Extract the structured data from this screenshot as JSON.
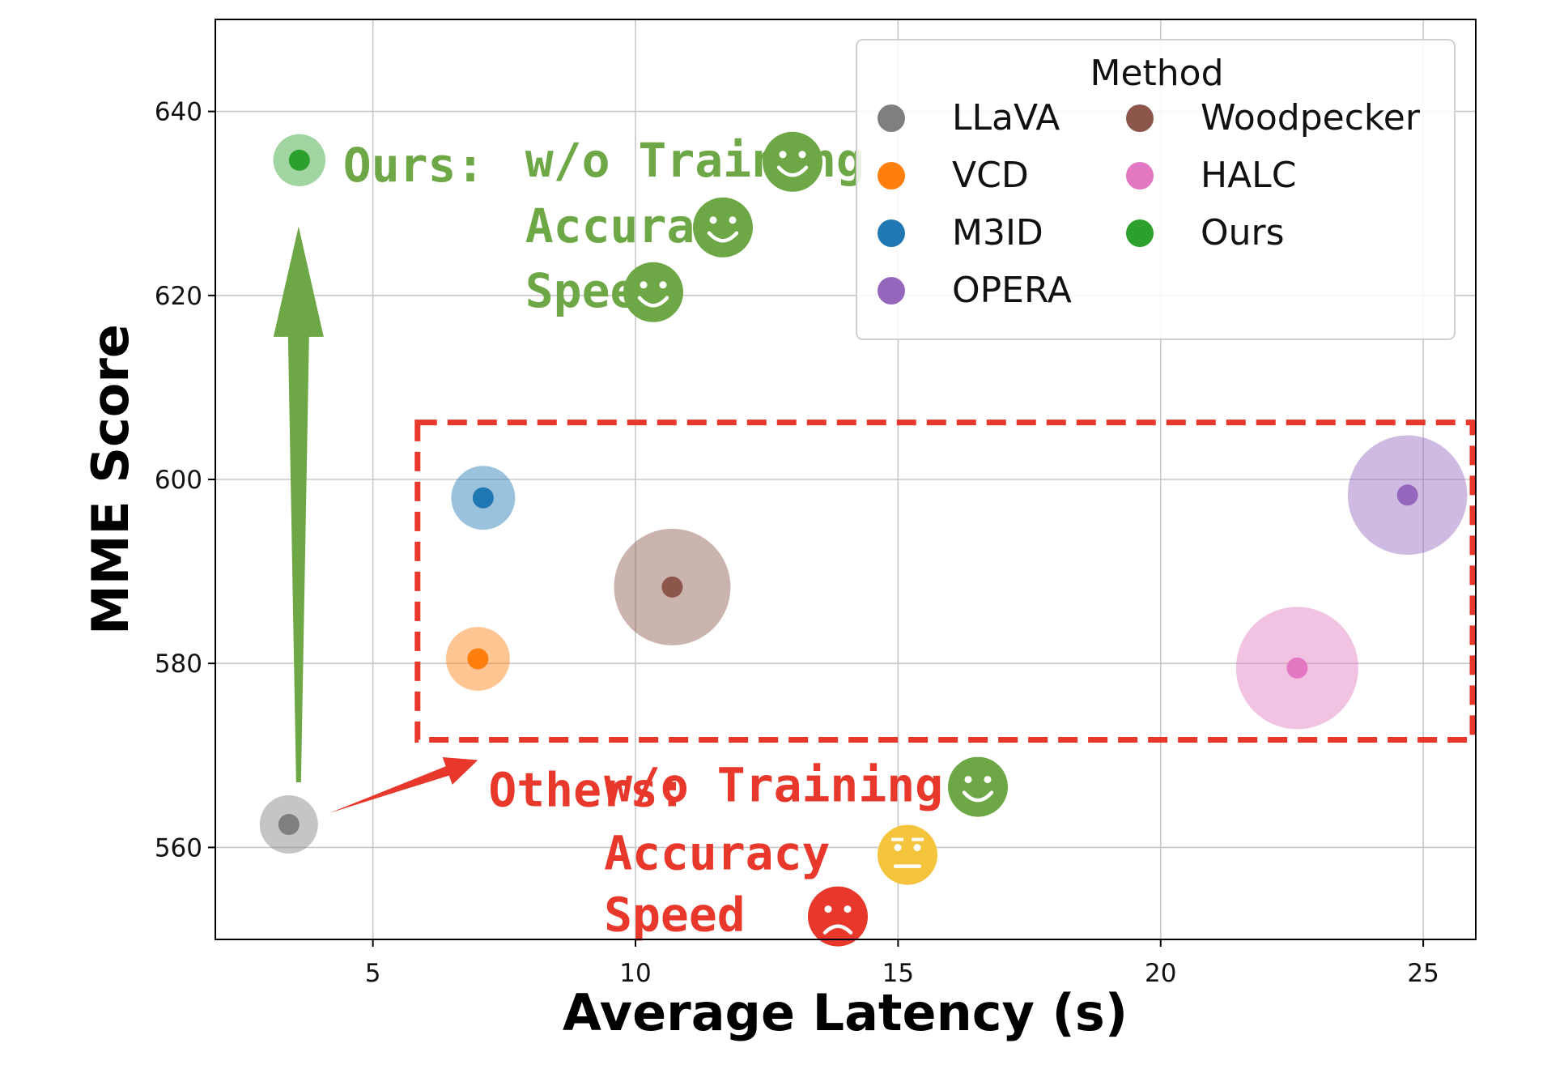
{
  "chart_data": {
    "type": "scatter",
    "xlabel": "Average Latency (s)",
    "ylabel": "MME Score",
    "xlim": [
      2,
      26
    ],
    "ylim": [
      550,
      650
    ],
    "xticks": [
      5,
      10,
      15,
      20,
      25
    ],
    "yticks": [
      560,
      580,
      600,
      620,
      640
    ],
    "grid": true,
    "legend": {
      "title": "Method",
      "placement": "top-right",
      "entries": [
        {
          "name": "LLaVA",
          "color": "#7f7f7f"
        },
        {
          "name": "Woodpecker",
          "color": "#8c564b"
        },
        {
          "name": "VCD",
          "color": "#ff7f0e"
        },
        {
          "name": "HALC",
          "color": "#e377c2"
        },
        {
          "name": "M3ID",
          "color": "#1f77b4"
        },
        {
          "name": "Ours",
          "color": "#2ca02c"
        },
        {
          "name": "OPERA",
          "color": "#9467bd"
        }
      ]
    },
    "series": [
      {
        "name": "LLaVA",
        "x": 3.4,
        "y": 562.5,
        "size": 1.0,
        "color": "#7f7f7f"
      },
      {
        "name": "VCD",
        "x": 7.0,
        "y": 580.5,
        "size": 1.2,
        "color": "#ff7f0e"
      },
      {
        "name": "M3ID",
        "x": 7.1,
        "y": 598.0,
        "size": 1.2,
        "color": "#1f77b4"
      },
      {
        "name": "OPERA",
        "x": 24.7,
        "y": 598.3,
        "size": 4.2,
        "color": "#9467bd"
      },
      {
        "name": "Woodpecker",
        "x": 10.7,
        "y": 588.3,
        "size": 4.0,
        "color": "#8c564b"
      },
      {
        "name": "HALC",
        "x": 22.6,
        "y": 579.5,
        "size": 4.4,
        "color": "#e377c2"
      },
      {
        "name": "Ours",
        "x": 3.6,
        "y": 634.7,
        "size": 0.8,
        "color": "#2ca02c"
      }
    ],
    "annotations": {
      "ours": {
        "color": "#6ea846",
        "prefix": "Ours:",
        "lines": [
          {
            "text": "w/o Training",
            "face": "happy",
            "face_color": "#6ea846"
          },
          {
            "text": "Accuracy",
            "face": "happy",
            "face_color": "#6ea846"
          },
          {
            "text": "Speed",
            "face": "happy",
            "face_color": "#6ea846"
          }
        ]
      },
      "others": {
        "color": "#e8372b",
        "prefix": "Others:",
        "lines": [
          {
            "text": "w/o Training",
            "face": "happy",
            "face_color": "#6ea846"
          },
          {
            "text": "Accuracy",
            "face": "neutral",
            "face_color": "#f4c43d"
          },
          {
            "text": "Speed",
            "face": "sad",
            "face_color": "#e8372b"
          }
        ]
      },
      "highlight_box_color": "#e8372b"
    }
  }
}
